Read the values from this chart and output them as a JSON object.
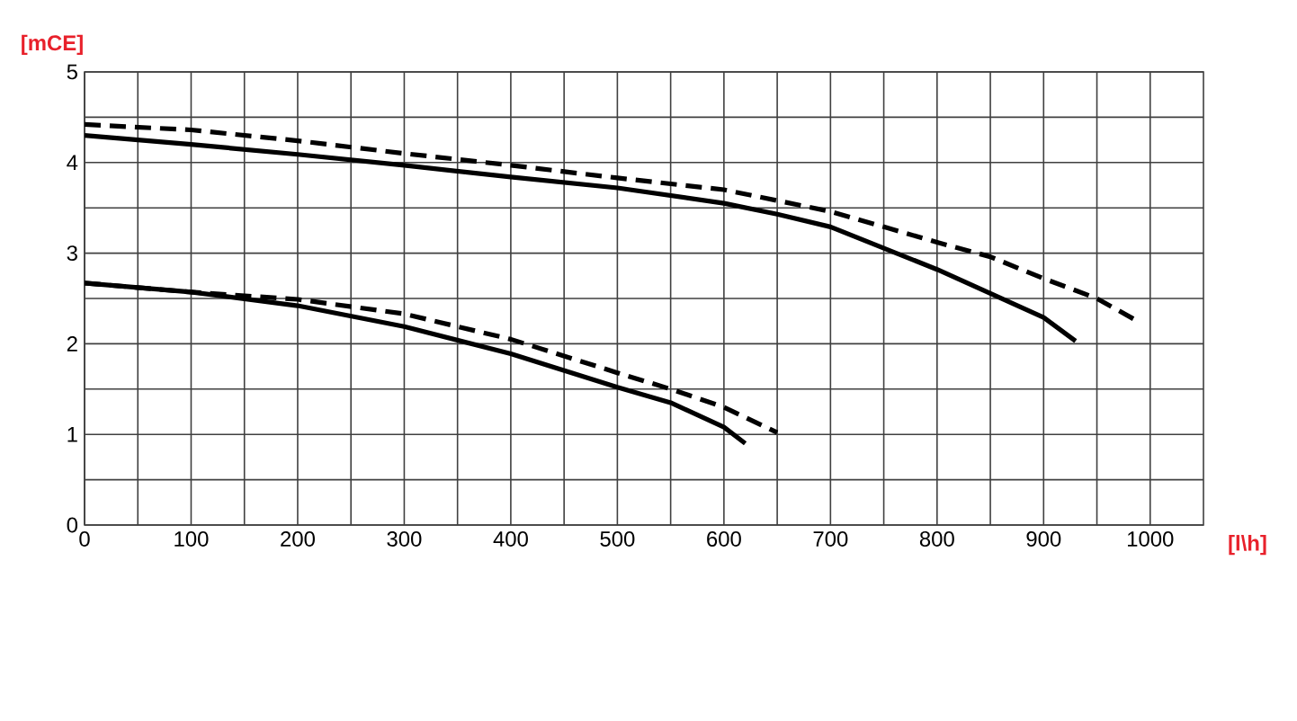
{
  "chart_data": {
    "type": "line",
    "xlabel": "[l\\h]",
    "ylabel": "[mCE]",
    "xlim": [
      0,
      1050
    ],
    "xticks": [
      0,
      100,
      200,
      300,
      400,
      500,
      600,
      700,
      800,
      900,
      1000
    ],
    "ylim": [
      0,
      5
    ],
    "yticks": [
      0,
      1,
      2,
      3,
      4,
      5
    ],
    "grid": true,
    "marker": "none",
    "series": [
      {
        "color": "#000000",
        "line_style": "dashed",
        "x": [
          0,
          100,
          200,
          300,
          400,
          500,
          600,
          650,
          700,
          750,
          800,
          850,
          900,
          950,
          985
        ],
        "values": [
          4.42,
          4.36,
          4.24,
          4.1,
          3.97,
          3.83,
          3.7,
          3.58,
          3.46,
          3.29,
          3.12,
          2.96,
          2.72,
          2.5,
          2.27
        ]
      },
      {
        "color": "#000000",
        "line_style": "solid",
        "x": [
          0,
          100,
          200,
          300,
          400,
          500,
          600,
          650,
          700,
          800,
          900,
          930
        ],
        "values": [
          4.3,
          4.2,
          4.09,
          3.97,
          3.84,
          3.72,
          3.55,
          3.43,
          3.29,
          2.82,
          2.29,
          2.03
        ]
      },
      {
        "color": "#000000",
        "line_style": "dashed",
        "x": [
          0,
          100,
          200,
          300,
          400,
          500,
          550,
          600,
          650
        ],
        "values": [
          2.67,
          2.57,
          2.49,
          2.33,
          2.05,
          1.68,
          1.5,
          1.3,
          1.02
        ]
      },
      {
        "color": "#000000",
        "line_style": "solid",
        "x": [
          0,
          100,
          200,
          300,
          400,
          500,
          550,
          600,
          620
        ],
        "values": [
          2.67,
          2.57,
          2.42,
          2.19,
          1.89,
          1.52,
          1.35,
          1.08,
          0.9
        ]
      }
    ]
  }
}
